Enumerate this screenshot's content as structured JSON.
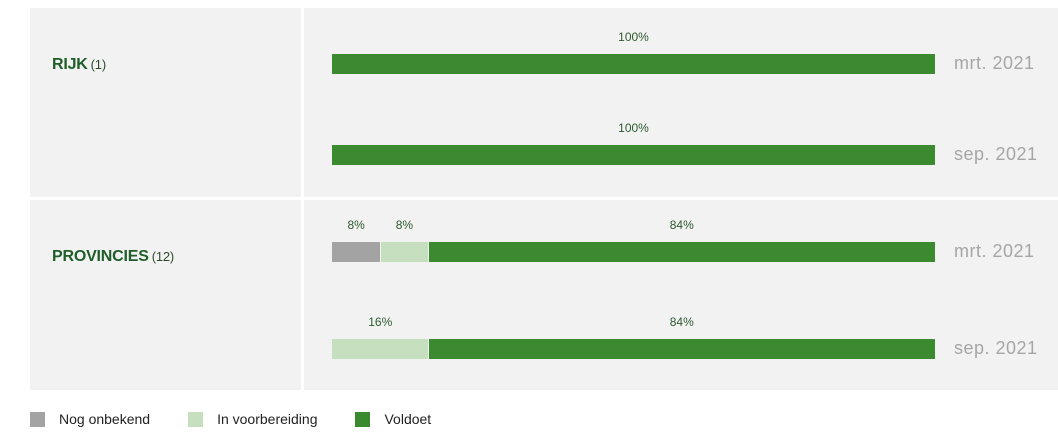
{
  "colors": {
    "Nog onbekend": "#a3a3a3",
    "In voorbereiding": "#c6e0bf",
    "Voldoet": "#3b8a30"
  },
  "legend": [
    {
      "name": "Nog onbekend",
      "color": "#a3a3a3"
    },
    {
      "name": "In voorbereiding",
      "color": "#c6e0bf"
    },
    {
      "name": "Voldoet",
      "color": "#3b8a30"
    }
  ],
  "chart_data": {
    "type": "bar",
    "orientation": "horizontal",
    "stacked": true,
    "xlim": [
      0,
      100
    ],
    "unit": "%",
    "grid": false,
    "legend_position": "bottom",
    "groups": [
      {
        "name": "RIJK",
        "count": "(1)",
        "bars": [
          {
            "period": "mrt. 2021",
            "segments": [
              {
                "series": "Voldoet",
                "value": 100,
                "label": "100%"
              }
            ]
          },
          {
            "period": "sep. 2021",
            "segments": [
              {
                "series": "Voldoet",
                "value": 100,
                "label": "100%"
              }
            ]
          }
        ]
      },
      {
        "name": "PROVINCIES",
        "count": "(12)",
        "bars": [
          {
            "period": "mrt. 2021",
            "segments": [
              {
                "series": "Nog onbekend",
                "value": 8,
                "label": "8%"
              },
              {
                "series": "In voorbereiding",
                "value": 8,
                "label": "8%"
              },
              {
                "series": "Voldoet",
                "value": 84,
                "label": "84%"
              }
            ]
          },
          {
            "period": "sep. 2021",
            "segments": [
              {
                "series": "In voorbereiding",
                "value": 16,
                "label": "16%"
              },
              {
                "series": "Voldoet",
                "value": 84,
                "label": "84%"
              }
            ]
          }
        ]
      }
    ]
  }
}
